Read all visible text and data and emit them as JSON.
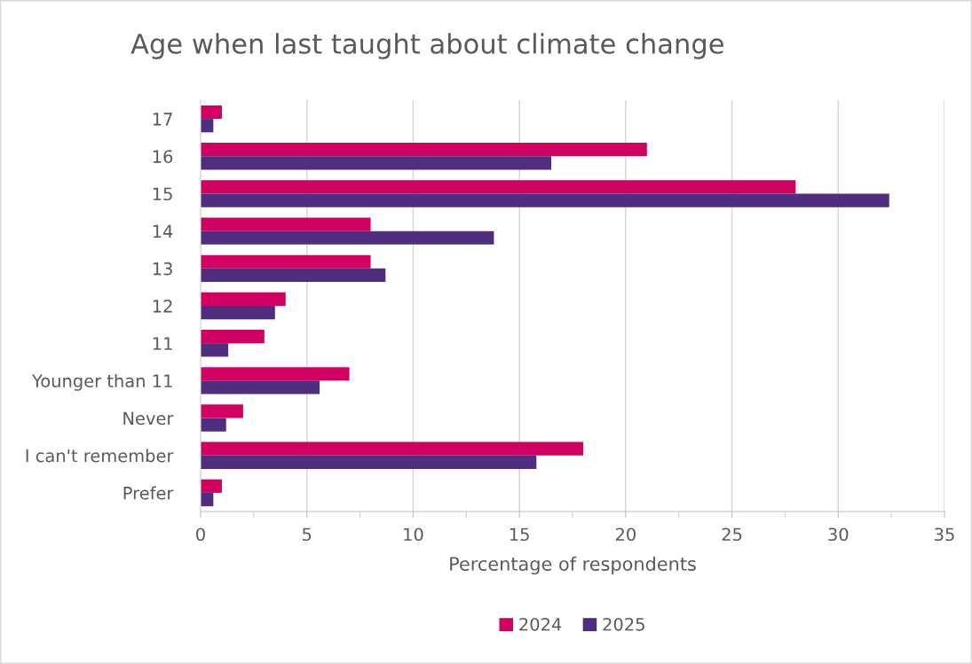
{
  "chart_data": {
    "type": "bar",
    "orientation": "horizontal",
    "title": "Age when last taught about climate change",
    "xlabel": "Percentage of respondents",
    "categories": [
      "17",
      "16",
      "15",
      "14",
      "13",
      "12",
      "11",
      "Younger than 11",
      "Never",
      "I can't remember",
      "Prefer"
    ],
    "series": [
      {
        "name": "2024",
        "color": "#d20060",
        "values": [
          1,
          21,
          28,
          8,
          8,
          4,
          3,
          7,
          2,
          18,
          1
        ]
      },
      {
        "name": "2025",
        "color": "#4f2d7f",
        "values": [
          0.6,
          16.5,
          32.4,
          13.8,
          8.7,
          3.5,
          1.3,
          5.6,
          1.2,
          15.8,
          0.6
        ]
      }
    ],
    "xlim": [
      0,
      35
    ],
    "xticks": [
      0,
      5,
      10,
      15,
      20,
      25,
      30,
      35
    ],
    "grid": "x",
    "legend": "bottom"
  }
}
